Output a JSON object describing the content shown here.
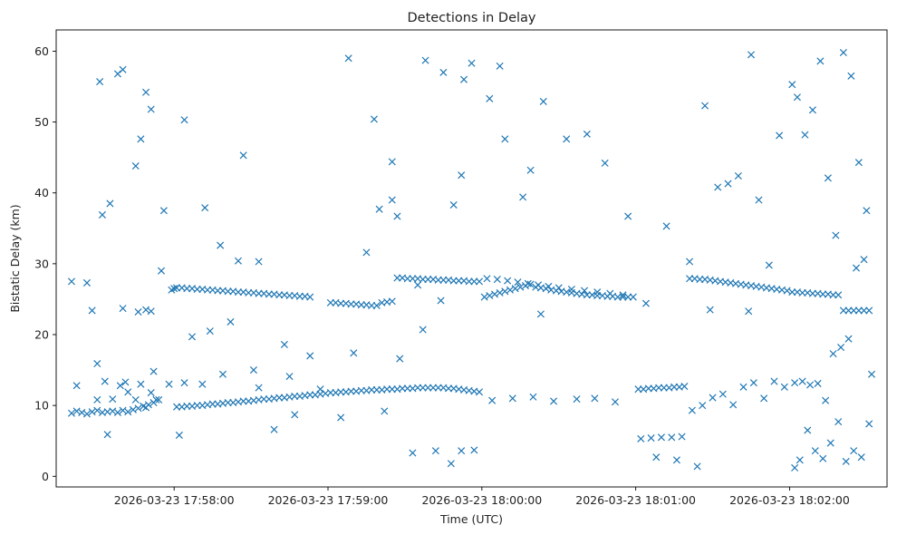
{
  "chart_data": {
    "type": "scatter",
    "title": "Detections in Delay",
    "xlabel": "Time (UTC)",
    "ylabel": "Bistatic Delay (km)",
    "marker": "x",
    "color": "#1f77b4",
    "grid": false,
    "legend": "none",
    "xlim": [
      "2026-03-23 17:57:14",
      "2026-03-23 18:02:38"
    ],
    "ylim": [
      -1.5,
      63
    ],
    "x_ticks": [
      "2026-03-23 17:58:00",
      "2026-03-23 17:59:00",
      "2026-03-23 18:00:00",
      "2026-03-23 18:01:00",
      "2026-03-23 18:02:00"
    ],
    "y_ticks": [
      0,
      10,
      20,
      30,
      40,
      50,
      60
    ],
    "series": [
      {
        "x": [
          "2026-03-23 17:57:20",
          "2026-03-23 17:57:22",
          "2026-03-23 17:57:24",
          "2026-03-23 17:57:26",
          "2026-03-23 17:57:28",
          "2026-03-23 17:57:30",
          "2026-03-23 17:57:32",
          "2026-03-23 17:57:34",
          "2026-03-23 17:57:36",
          "2026-03-23 17:57:38",
          "2026-03-23 17:57:40",
          "2026-03-23 17:57:42",
          "2026-03-23 17:57:44",
          "2026-03-23 17:57:46",
          "2026-03-23 17:57:48",
          "2026-03-23 17:57:50",
          "2026-03-23 17:57:52",
          "2026-03-23 17:57:54",
          "2026-03-23 17:57:20",
          "2026-03-23 17:57:26",
          "2026-03-23 17:57:28",
          "2026-03-23 17:57:30",
          "2026-03-23 17:57:33",
          "2026-03-23 17:57:36",
          "2026-03-23 17:57:39",
          "2026-03-23 17:57:41",
          "2026-03-23 17:57:46",
          "2026-03-23 17:57:49",
          "2026-03-23 17:57:51",
          "2026-03-23 17:57:52",
          "2026-03-23 17:57:55",
          "2026-03-23 17:57:58",
          "2026-03-23 17:57:22",
          "2026-03-23 17:57:30",
          "2026-03-23 17:57:34",
          "2026-03-23 17:57:42",
          "2026-03-23 17:57:45",
          "2026-03-23 17:57:47",
          "2026-03-23 17:57:49",
          "2026-03-23 17:57:51",
          "2026-03-23 17:57:53",
          "2026-03-23 17:57:56",
          "2026-03-23 17:57:59",
          "2026-03-23 17:57:31",
          "2026-03-23 17:57:32",
          "2026-03-23 17:57:38",
          "2026-03-23 17:57:40",
          "2026-03-23 17:57:45",
          "2026-03-23 17:57:47",
          "2026-03-23 17:57:49",
          "2026-03-23 17:57:51",
          "2026-03-23 17:57:35",
          "2026-03-23 17:57:40",
          "2026-03-23 17:58:00",
          "2026-03-23 17:58:01",
          "2026-03-23 17:58:03",
          "2026-03-23 17:58:05",
          "2026-03-23 17:58:07",
          "2026-03-23 17:58:09",
          "2026-03-23 17:58:11",
          "2026-03-23 17:58:13",
          "2026-03-23 17:58:15",
          "2026-03-23 17:58:17",
          "2026-03-23 17:58:19",
          "2026-03-23 17:58:21",
          "2026-03-23 17:58:23",
          "2026-03-23 17:58:25",
          "2026-03-23 17:58:27",
          "2026-03-23 17:58:29",
          "2026-03-23 17:58:31",
          "2026-03-23 17:58:33",
          "2026-03-23 17:58:35",
          "2026-03-23 17:58:37",
          "2026-03-23 17:58:39",
          "2026-03-23 17:58:41",
          "2026-03-23 17:58:43",
          "2026-03-23 17:58:45",
          "2026-03-23 17:58:47",
          "2026-03-23 17:58:49",
          "2026-03-23 17:58:51",
          "2026-03-23 17:58:53",
          "2026-03-23 17:58:01",
          "2026-03-23 17:58:03",
          "2026-03-23 17:58:05",
          "2026-03-23 17:58:07",
          "2026-03-23 17:58:09",
          "2026-03-23 17:58:11",
          "2026-03-23 17:58:13",
          "2026-03-23 17:58:15",
          "2026-03-23 17:58:17",
          "2026-03-23 17:58:19",
          "2026-03-23 17:58:21",
          "2026-03-23 17:58:23",
          "2026-03-23 17:58:25",
          "2026-03-23 17:58:27",
          "2026-03-23 17:58:29",
          "2026-03-23 17:58:31",
          "2026-03-23 17:58:33",
          "2026-03-23 17:58:35",
          "2026-03-23 17:58:37",
          "2026-03-23 17:58:39",
          "2026-03-23 17:58:41",
          "2026-03-23 17:58:43",
          "2026-03-23 17:58:45",
          "2026-03-23 17:58:47",
          "2026-03-23 17:58:49",
          "2026-03-23 17:58:51",
          "2026-03-23 17:58:53",
          "2026-03-23 17:58:55",
          "2026-03-23 17:58:57",
          "2026-03-23 17:58:59",
          "2026-03-23 17:58:02",
          "2026-03-23 17:58:04",
          "2026-03-23 17:58:07",
          "2026-03-23 17:58:11",
          "2026-03-23 17:58:14",
          "2026-03-23 17:58:19",
          "2026-03-23 17:58:22",
          "2026-03-23 17:58:25",
          "2026-03-23 17:58:31",
          "2026-03-23 17:58:33",
          "2026-03-23 17:58:39",
          "2026-03-23 17:58:43",
          "2026-03-23 17:58:45",
          "2026-03-23 17:58:47",
          "2026-03-23 17:58:53",
          "2026-03-23 17:58:57",
          "2026-03-23 17:58:04",
          "2026-03-23 17:58:12",
          "2026-03-23 17:58:18",
          "2026-03-23 17:58:27",
          "2026-03-23 17:58:33",
          "2026-03-23 17:59:01",
          "2026-03-23 17:59:03",
          "2026-03-23 17:59:05",
          "2026-03-23 17:59:07",
          "2026-03-23 17:59:09",
          "2026-03-23 17:59:11",
          "2026-03-23 17:59:13",
          "2026-03-23 17:59:15",
          "2026-03-23 17:59:17",
          "2026-03-23 17:59:19",
          "2026-03-23 17:59:21",
          "2026-03-23 17:59:23",
          "2026-03-23 17:59:25",
          "2026-03-23 17:59:27",
          "2026-03-23 17:59:29",
          "2026-03-23 17:59:31",
          "2026-03-23 17:59:33",
          "2026-03-23 17:59:35",
          "2026-03-23 17:59:37",
          "2026-03-23 17:59:39",
          "2026-03-23 17:59:41",
          "2026-03-23 17:59:43",
          "2026-03-23 17:59:45",
          "2026-03-23 17:59:47",
          "2026-03-23 17:59:49",
          "2026-03-23 17:59:51",
          "2026-03-23 17:59:53",
          "2026-03-23 17:59:55",
          "2026-03-23 17:59:57",
          "2026-03-23 17:59:59",
          "2026-03-23 17:59:01",
          "2026-03-23 17:59:03",
          "2026-03-23 17:59:05",
          "2026-03-23 17:59:07",
          "2026-03-23 17:59:09",
          "2026-03-23 17:59:11",
          "2026-03-23 17:59:13",
          "2026-03-23 17:59:15",
          "2026-03-23 17:59:17",
          "2026-03-23 17:59:19",
          "2026-03-23 17:59:21",
          "2026-03-23 17:59:23",
          "2026-03-23 17:59:25",
          "2026-03-23 17:59:27",
          "2026-03-23 17:59:29",
          "2026-03-23 17:59:31",
          "2026-03-23 17:59:33",
          "2026-03-23 17:59:35",
          "2026-03-23 17:59:37",
          "2026-03-23 17:59:39",
          "2026-03-23 17:59:41",
          "2026-03-23 17:59:43",
          "2026-03-23 17:59:45",
          "2026-03-23 17:59:47",
          "2026-03-23 17:59:49",
          "2026-03-23 17:59:51",
          "2026-03-23 17:59:53",
          "2026-03-23 17:59:55",
          "2026-03-23 17:59:57",
          "2026-03-23 17:59:59",
          "2026-03-23 17:59:05",
          "2026-03-23 17:59:10",
          "2026-03-23 17:59:15",
          "2026-03-23 17:59:22",
          "2026-03-23 17:59:28",
          "2026-03-23 17:59:33",
          "2026-03-23 17:59:37",
          "2026-03-23 17:59:42",
          "2026-03-23 17:59:48",
          "2026-03-23 17:59:52",
          "2026-03-23 17:59:57",
          "2026-03-23 17:59:08",
          "2026-03-23 17:59:18",
          "2026-03-23 17:59:25",
          "2026-03-23 17:59:27",
          "2026-03-23 17:59:38",
          "2026-03-23 17:59:45",
          "2026-03-23 17:59:53",
          "2026-03-23 17:59:56",
          "2026-03-23 17:59:20",
          "2026-03-23 17:59:25",
          "2026-03-23 17:59:35",
          "2026-03-23 17:59:44",
          "2026-03-23 17:59:49",
          "2026-03-23 17:59:52",
          "2026-03-23 18:00:01",
          "2026-03-23 18:00:03",
          "2026-03-23 18:00:05",
          "2026-03-23 18:00:07",
          "2026-03-23 18:00:09",
          "2026-03-23 18:00:11",
          "2026-03-23 18:00:13",
          "2026-03-23 18:00:15",
          "2026-03-23 18:00:17",
          "2026-03-23 18:00:19",
          "2026-03-23 18:00:21",
          "2026-03-23 18:00:23",
          "2026-03-23 18:00:25",
          "2026-03-23 18:00:27",
          "2026-03-23 18:00:29",
          "2026-03-23 18:00:31",
          "2026-03-23 18:00:33",
          "2026-03-23 18:00:35",
          "2026-03-23 18:00:37",
          "2026-03-23 18:00:39",
          "2026-03-23 18:00:41",
          "2026-03-23 18:00:43",
          "2026-03-23 18:00:45",
          "2026-03-23 18:00:47",
          "2026-03-23 18:00:49",
          "2026-03-23 18:00:51",
          "2026-03-23 18:00:53",
          "2026-03-23 18:00:55",
          "2026-03-23 18:00:57",
          "2026-03-23 18:00:59",
          "2026-03-23 18:00:02",
          "2026-03-23 18:00:06",
          "2026-03-23 18:00:10",
          "2026-03-23 18:00:14",
          "2026-03-23 18:00:18",
          "2026-03-23 18:00:22",
          "2026-03-23 18:00:26",
          "2026-03-23 18:00:30",
          "2026-03-23 18:00:35",
          "2026-03-23 18:00:40",
          "2026-03-23 18:00:45",
          "2026-03-23 18:00:50",
          "2026-03-23 18:00:55",
          "2026-03-23 18:00:04",
          "2026-03-23 18:00:12",
          "2026-03-23 18:00:20",
          "2026-03-23 18:00:28",
          "2026-03-23 18:00:37",
          "2026-03-23 18:00:44",
          "2026-03-23 18:00:52",
          "2026-03-23 18:00:03",
          "2026-03-23 18:00:09",
          "2026-03-23 18:00:16",
          "2026-03-23 18:00:24",
          "2026-03-23 18:00:33",
          "2026-03-23 18:00:41",
          "2026-03-23 18:00:48",
          "2026-03-23 18:00:57",
          "2026-03-23 18:00:07",
          "2026-03-23 18:00:19",
          "2026-03-23 18:00:23",
          "2026-03-23 18:01:01",
          "2026-03-23 18:01:03",
          "2026-03-23 18:01:05",
          "2026-03-23 18:01:07",
          "2026-03-23 18:01:09",
          "2026-03-23 18:01:11",
          "2026-03-23 18:01:13",
          "2026-03-23 18:01:15",
          "2026-03-23 18:01:17",
          "2026-03-23 18:01:19",
          "2026-03-23 18:01:21",
          "2026-03-23 18:01:23",
          "2026-03-23 18:01:25",
          "2026-03-23 18:01:27",
          "2026-03-23 18:01:29",
          "2026-03-23 18:01:31",
          "2026-03-23 18:01:33",
          "2026-03-23 18:01:35",
          "2026-03-23 18:01:37",
          "2026-03-23 18:01:39",
          "2026-03-23 18:01:41",
          "2026-03-23 18:01:43",
          "2026-03-23 18:01:45",
          "2026-03-23 18:01:47",
          "2026-03-23 18:01:49",
          "2026-03-23 18:01:51",
          "2026-03-23 18:01:53",
          "2026-03-23 18:01:55",
          "2026-03-23 18:01:57",
          "2026-03-23 18:01:59",
          "2026-03-23 18:01:02",
          "2026-03-23 18:01:06",
          "2026-03-23 18:01:10",
          "2026-03-23 18:01:14",
          "2026-03-23 18:01:18",
          "2026-03-23 18:01:22",
          "2026-03-23 18:01:26",
          "2026-03-23 18:01:30",
          "2026-03-23 18:01:34",
          "2026-03-23 18:01:38",
          "2026-03-23 18:01:42",
          "2026-03-23 18:01:46",
          "2026-03-23 18:01:50",
          "2026-03-23 18:01:54",
          "2026-03-23 18:01:58",
          "2026-03-23 18:01:04",
          "2026-03-23 18:01:12",
          "2026-03-23 18:01:21",
          "2026-03-23 18:01:29",
          "2026-03-23 18:01:36",
          "2026-03-23 18:01:44",
          "2026-03-23 18:01:52",
          "2026-03-23 18:01:08",
          "2026-03-23 18:01:16",
          "2026-03-23 18:01:24",
          "2026-03-23 18:01:32",
          "2026-03-23 18:01:40",
          "2026-03-23 18:01:48",
          "2026-03-23 18:01:56",
          "2026-03-23 18:01:27",
          "2026-03-23 18:01:45",
          "2026-03-23 18:02:01",
          "2026-03-23 18:02:03",
          "2026-03-23 18:02:05",
          "2026-03-23 18:02:07",
          "2026-03-23 18:02:09",
          "2026-03-23 18:02:11",
          "2026-03-23 18:02:13",
          "2026-03-23 18:02:15",
          "2026-03-23 18:02:17",
          "2026-03-23 18:02:19",
          "2026-03-23 18:02:21",
          "2026-03-23 18:02:23",
          "2026-03-23 18:02:25",
          "2026-03-23 18:02:27",
          "2026-03-23 18:02:29",
          "2026-03-23 18:02:31",
          "2026-03-23 18:02:02",
          "2026-03-23 18:02:05",
          "2026-03-23 18:02:08",
          "2026-03-23 18:02:11",
          "2026-03-23 18:02:14",
          "2026-03-23 18:02:17",
          "2026-03-23 18:02:20",
          "2026-03-23 18:02:23",
          "2026-03-23 18:02:26",
          "2026-03-23 18:02:29",
          "2026-03-23 18:02:32",
          "2026-03-23 18:02:02",
          "2026-03-23 18:02:04",
          "2026-03-23 18:02:07",
          "2026-03-23 18:02:10",
          "2026-03-23 18:02:13",
          "2026-03-23 18:02:16",
          "2026-03-23 18:02:19",
          "2026-03-23 18:02:22",
          "2026-03-23 18:02:25",
          "2026-03-23 18:02:28",
          "2026-03-23 18:02:31",
          "2026-03-23 18:02:01",
          "2026-03-23 18:02:03",
          "2026-03-23 18:02:06",
          "2026-03-23 18:02:09",
          "2026-03-23 18:02:12",
          "2026-03-23 18:02:15",
          "2026-03-23 18:02:18",
          "2026-03-23 18:02:21",
          "2026-03-23 18:02:24",
          "2026-03-23 18:02:27",
          "2026-03-23 18:02:30"
        ],
        "y": [
          8.9,
          9.2,
          9.0,
          8.8,
          9.1,
          9.3,
          9.0,
          9.1,
          9.2,
          9.0,
          9.3,
          9.1,
          9.4,
          9.6,
          9.9,
          10.1,
          10.4,
          10.8,
          27.5,
          27.3,
          23.4,
          10.8,
          13.4,
          10.9,
          12.8,
          13.3,
          23.2,
          23.5,
          23.3,
          14.8,
          29.0,
          13.0,
          12.8,
          15.9,
          5.9,
          11.9,
          10.8,
          13.0,
          9.7,
          11.8,
          10.8,
          37.5,
          26.3,
          55.7,
          36.9,
          56.8,
          57.4,
          43.8,
          47.6,
          54.2,
          51.8,
          38.5,
          23.7,
          26.5,
          26.6,
          26.6,
          26.5,
          26.5,
          26.4,
          26.4,
          26.3,
          26.3,
          26.2,
          26.2,
          26.1,
          26.1,
          26.0,
          26.0,
          25.9,
          25.9,
          25.8,
          25.8,
          25.7,
          25.7,
          25.6,
          25.6,
          25.5,
          25.5,
          25.4,
          25.4,
          25.3,
          9.8,
          9.8,
          9.9,
          9.9,
          10.0,
          10.0,
          10.1,
          10.2,
          10.2,
          10.3,
          10.4,
          10.4,
          10.5,
          10.6,
          10.6,
          10.7,
          10.8,
          10.9,
          10.9,
          11.0,
          11.1,
          11.1,
          11.2,
          11.3,
          11.3,
          11.4,
          11.5,
          11.5,
          11.6,
          11.7,
          5.8,
          13.2,
          19.7,
          13.0,
          20.5,
          14.4,
          21.8,
          30.4,
          15.0,
          12.5,
          6.6,
          18.6,
          14.1,
          8.7,
          17.0,
          12.3,
          50.3,
          37.9,
          32.6,
          45.3,
          30.3,
          11.8,
          11.8,
          11.9,
          11.9,
          12.0,
          12.0,
          12.1,
          12.1,
          12.2,
          12.2,
          12.2,
          12.3,
          12.3,
          12.3,
          12.4,
          12.4,
          12.4,
          12.5,
          12.5,
          12.5,
          12.5,
          12.5,
          12.5,
          12.4,
          12.4,
          12.3,
          12.2,
          12.1,
          12.0,
          11.9,
          24.5,
          24.5,
          24.4,
          24.4,
          24.3,
          24.3,
          24.2,
          24.2,
          24.1,
          24.1,
          24.5,
          24.6,
          24.7,
          28.0,
          28.0,
          27.9,
          27.9,
          27.9,
          27.8,
          27.8,
          27.8,
          27.7,
          27.7,
          27.7,
          27.6,
          27.6,
          27.6,
          27.5,
          27.5,
          27.5,
          8.3,
          17.4,
          31.6,
          9.2,
          16.6,
          3.3,
          20.7,
          3.6,
          1.8,
          3.6,
          3.7,
          59.0,
          50.4,
          44.4,
          36.7,
          58.7,
          57.0,
          56.0,
          58.3,
          37.7,
          39.0,
          27.0,
          24.8,
          38.3,
          42.5,
          25.3,
          25.5,
          25.7,
          25.9,
          26.1,
          26.3,
          26.5,
          26.7,
          26.9,
          27.1,
          26.7,
          26.6,
          26.5,
          26.3,
          26.2,
          26.1,
          26.0,
          25.9,
          25.8,
          25.7,
          25.6,
          25.6,
          25.5,
          25.5,
          25.4,
          25.4,
          25.3,
          25.3,
          25.3,
          25.3,
          27.9,
          27.8,
          27.6,
          27.4,
          27.2,
          27.0,
          26.8,
          26.6,
          26.4,
          26.2,
          26.0,
          25.8,
          25.6,
          10.7,
          11.0,
          11.2,
          10.6,
          10.9,
          11.0,
          10.5,
          53.3,
          47.6,
          39.4,
          52.9,
          47.6,
          48.3,
          44.2,
          36.7,
          57.9,
          43.2,
          22.9,
          12.3,
          12.3,
          12.4,
          12.4,
          12.5,
          12.5,
          12.5,
          12.6,
          12.6,
          12.7,
          27.9,
          27.9,
          27.8,
          27.8,
          27.7,
          27.6,
          27.5,
          27.4,
          27.3,
          27.2,
          27.1,
          27.0,
          26.9,
          26.8,
          26.7,
          26.6,
          26.5,
          26.4,
          26.3,
          26.2,
          5.3,
          5.4,
          5.5,
          5.5,
          5.6,
          9.3,
          10.0,
          11.1,
          11.6,
          10.1,
          12.6,
          13.2,
          11.0,
          13.4,
          12.6,
          24.4,
          35.3,
          30.3,
          23.5,
          41.3,
          23.3,
          29.8,
          2.7,
          2.3,
          1.4,
          40.8,
          42.4,
          39.0,
          48.1,
          52.3,
          59.5,
          26.0,
          26.0,
          25.9,
          25.9,
          25.8,
          25.8,
          25.7,
          25.7,
          25.6,
          25.6,
          23.4,
          23.4,
          23.4,
          23.4,
          23.4,
          23.4,
          13.2,
          13.4,
          12.9,
          13.1,
          10.7,
          17.3,
          18.2,
          19.4,
          29.4,
          30.6,
          14.4,
          1.2,
          2.3,
          6.5,
          3.6,
          2.5,
          4.7,
          7.7,
          2.1,
          3.6,
          2.7,
          7.4,
          55.3,
          53.5,
          48.2,
          51.7,
          58.6,
          42.1,
          34.0,
          59.8,
          56.5,
          44.3,
          37.5
        ]
      }
    ]
  }
}
